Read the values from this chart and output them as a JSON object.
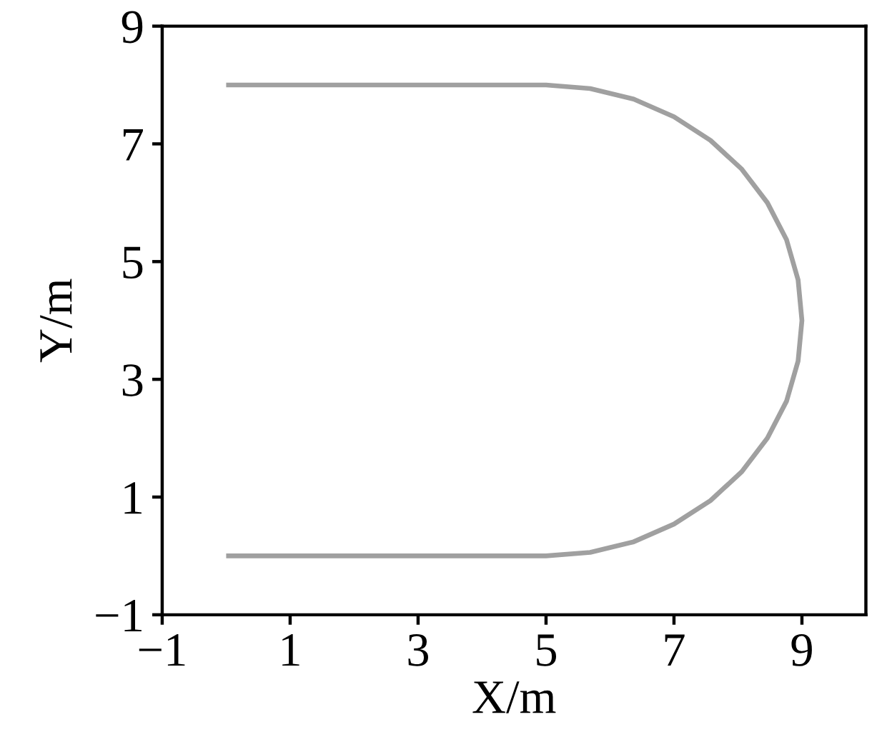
{
  "chart_data": {
    "type": "line",
    "xlabel": "X/m",
    "ylabel": "Y/m",
    "xlim": [
      -1,
      10
    ],
    "ylim": [
      -1,
      9
    ],
    "xticks": [
      {
        "value": -1,
        "label": "−1"
      },
      1,
      3,
      5,
      7,
      9
    ],
    "yticks": [
      {
        "value": -1,
        "label": "−1"
      },
      1,
      3,
      5,
      7,
      9
    ],
    "series": [
      {
        "color": "#a0a0a0",
        "x": [
          0,
          5.0,
          5.69,
          6.37,
          7.0,
          7.57,
          8.06,
          8.46,
          8.76,
          8.94,
          9.0,
          8.94,
          8.76,
          8.46,
          8.06,
          7.57,
          7.0,
          6.37,
          5.69,
          5.0,
          0
        ],
        "values": [
          8,
          8.0,
          7.94,
          7.76,
          7.46,
          7.06,
          6.57,
          6.0,
          5.37,
          4.69,
          4.0,
          3.31,
          2.63,
          2.0,
          1.43,
          0.94,
          0.54,
          0.24,
          0.06,
          0.0,
          0
        ]
      }
    ]
  }
}
